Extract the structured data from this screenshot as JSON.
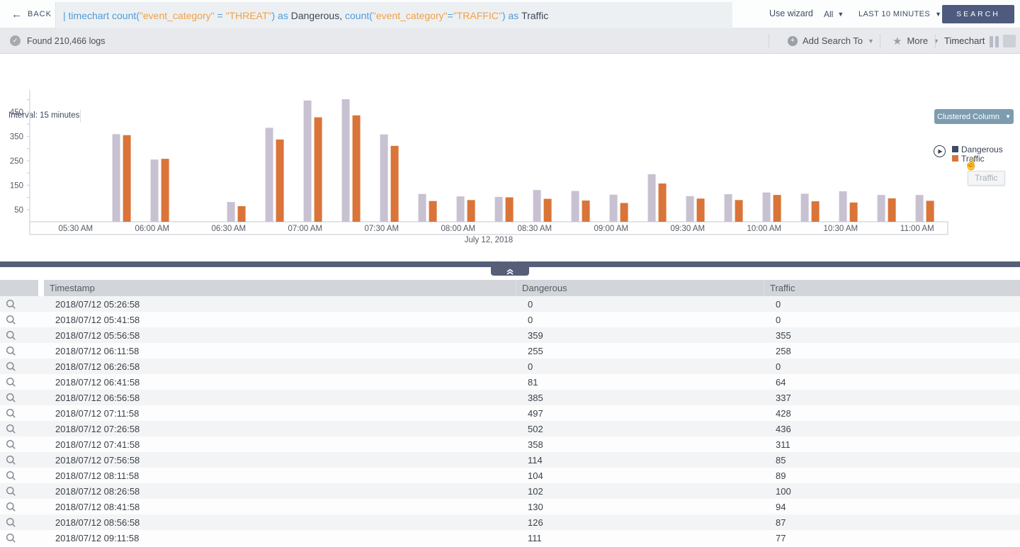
{
  "colors": {
    "series_dangerous_bar": "#c8c1d2",
    "series_traffic_bar": "#da7438",
    "legend_dangerous": "#3f4b63",
    "legend_traffic": "#da7438",
    "search_button": "#4e5b7e",
    "chart_type_button": "#7e9cb0",
    "divider": "#575f78",
    "query_keyword": "#4f9bd6",
    "query_string": "#f0a148",
    "query_identifier": "#3c4859"
  },
  "topbar": {
    "back_label": "BACK",
    "query_tokens": [
      {
        "t": "| ",
        "c": "kw"
      },
      {
        "t": "timechart ",
        "c": "kw"
      },
      {
        "t": "count(",
        "c": "kw"
      },
      {
        "t": "\"event_category\" ",
        "c": "str"
      },
      {
        "t": "= ",
        "c": "kw"
      },
      {
        "t": "\"THREAT\"",
        "c": "str"
      },
      {
        "t": ") ",
        "c": "kw"
      },
      {
        "t": "as ",
        "c": "kw"
      },
      {
        "t": "Dangerous, ",
        "c": "id"
      },
      {
        "t": "count(",
        "c": "kw"
      },
      {
        "t": "\"event_category\"",
        "c": "str"
      },
      {
        "t": "=",
        "c": "kw"
      },
      {
        "t": "\"TRAFFIC\"",
        "c": "str"
      },
      {
        "t": ") ",
        "c": "kw"
      },
      {
        "t": "as ",
        "c": "kw"
      },
      {
        "t": "Traffic",
        "c": "id"
      }
    ],
    "use_wizard_label": "Use wizard",
    "scope_value": "All",
    "time_range_value": "LAST 10 MINUTES",
    "search_label": "SEARCH"
  },
  "statusbar": {
    "found_text": "Found 210,466 logs",
    "add_search_to_label": "Add Search To",
    "more_label": "More",
    "panel_title": "Timechart"
  },
  "chart_panel": {
    "interval_label": "Interval: 15 minutes",
    "chart_type_label": "Clustered Column",
    "legend": [
      {
        "label": "Dangerous",
        "color": "#3f4b63"
      },
      {
        "label": "Traffic",
        "color": "#da7438"
      }
    ],
    "tooltip_text": "Traffic",
    "date_label": "July 12, 2018"
  },
  "chart_data": {
    "type": "bar",
    "title": "Timechart — Clustered Column",
    "xlabel": "July 12, 2018",
    "ylabel": "",
    "ylim": [
      0,
      520
    ],
    "y_ticks": [
      50,
      150,
      250,
      350,
      450
    ],
    "x_tick_labels": [
      "05:30 AM",
      "06:00 AM",
      "06:30 AM",
      "07:00 AM",
      "07:30 AM",
      "08:00 AM",
      "08:30 AM",
      "09:00 AM",
      "09:30 AM",
      "10:00 AM",
      "10:30 AM",
      "11:00 AM"
    ],
    "legend_position": "right",
    "grid": false,
    "x": [
      "05:26:58",
      "05:41:58",
      "05:56:58",
      "06:11:58",
      "06:26:58",
      "06:41:58",
      "06:56:58",
      "07:11:58",
      "07:26:58",
      "07:41:58",
      "07:56:58",
      "08:11:58",
      "08:26:58",
      "08:41:58",
      "08:56:58",
      "09:11:58",
      "09:26:58",
      "09:41:58",
      "09:56:58",
      "10:11:58",
      "10:26:58",
      "10:41:58",
      "10:56:58",
      "11:11:58"
    ],
    "series": [
      {
        "name": "Dangerous",
        "color": "#c8c1d2",
        "values": [
          0,
          0,
          359,
          255,
          0,
          81,
          385,
          497,
          502,
          358,
          114,
          104,
          102,
          130,
          126,
          111,
          195,
          105,
          113,
          120,
          115,
          125,
          110,
          110
        ]
      },
      {
        "name": "Traffic",
        "color": "#da7438",
        "values": [
          0,
          0,
          355,
          258,
          0,
          64,
          337,
          428,
          436,
          311,
          85,
          89,
          100,
          94,
          87,
          77,
          157,
          95,
          89,
          110,
          84,
          79,
          96,
          86
        ]
      }
    ]
  },
  "table": {
    "columns": [
      "Timestamp",
      "Dangerous",
      "Traffic"
    ],
    "rows": [
      [
        "2018/07/12 05:26:58",
        "0",
        "0"
      ],
      [
        "2018/07/12 05:41:58",
        "0",
        "0"
      ],
      [
        "2018/07/12 05:56:58",
        "359",
        "355"
      ],
      [
        "2018/07/12 06:11:58",
        "255",
        "258"
      ],
      [
        "2018/07/12 06:26:58",
        "0",
        "0"
      ],
      [
        "2018/07/12 06:41:58",
        "81",
        "64"
      ],
      [
        "2018/07/12 06:56:58",
        "385",
        "337"
      ],
      [
        "2018/07/12 07:11:58",
        "497",
        "428"
      ],
      [
        "2018/07/12 07:26:58",
        "502",
        "436"
      ],
      [
        "2018/07/12 07:41:58",
        "358",
        "311"
      ],
      [
        "2018/07/12 07:56:58",
        "114",
        "85"
      ],
      [
        "2018/07/12 08:11:58",
        "104",
        "89"
      ],
      [
        "2018/07/12 08:26:58",
        "102",
        "100"
      ],
      [
        "2018/07/12 08:41:58",
        "130",
        "94"
      ],
      [
        "2018/07/12 08:56:58",
        "126",
        "87"
      ],
      [
        "2018/07/12 09:11:58",
        "111",
        "77"
      ]
    ]
  }
}
